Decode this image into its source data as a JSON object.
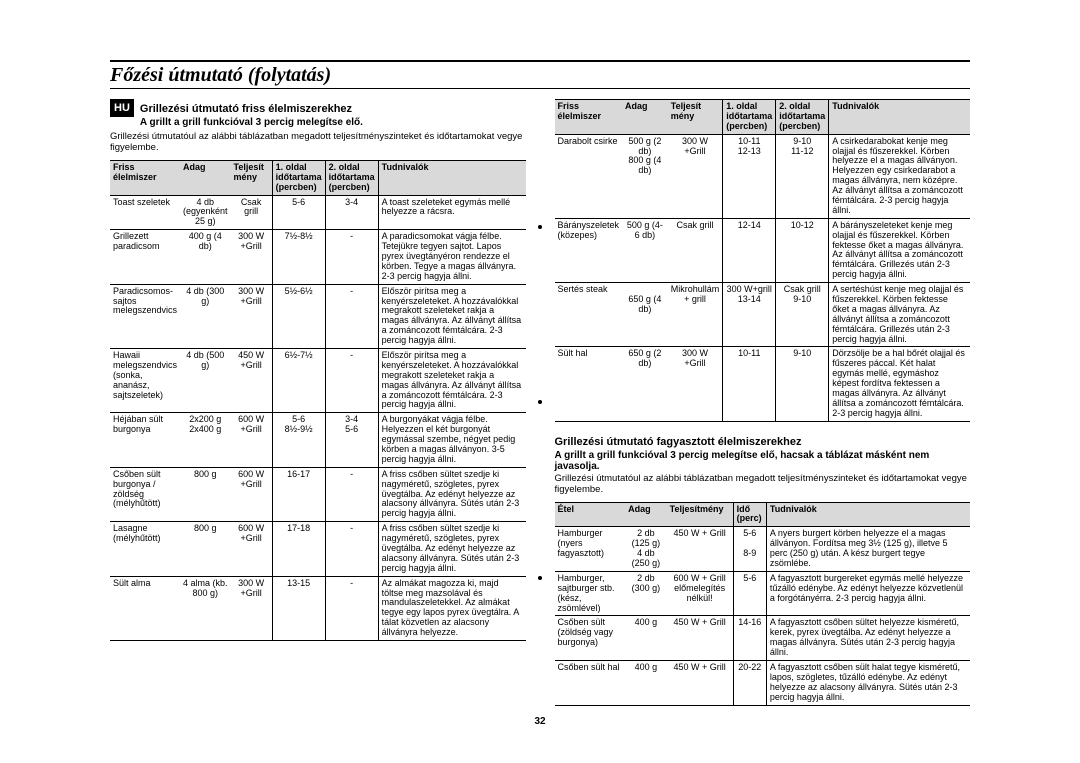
{
  "page": {
    "title": "Főzési útmutató (folytatás)",
    "number": "32",
    "lang_badge": "HU"
  },
  "colors": {
    "header_bg": "#d9d9d9",
    "border": "#000000",
    "bg": "#ffffff"
  },
  "sectionA": {
    "heading": "Grillezési útmutató friss élelmiszerekhez",
    "sub": "A grillt a grill funkcióval 3 percig melegítse elő.",
    "intro": "Grillezési útmutatóul az alábbi táblázatban megadott teljesítményszinteket és időtartamokat vegye figyelembe.",
    "headers": {
      "c1": "Friss élelmiszer",
      "c2": "Adag",
      "c3": "Teljesít\nmény",
      "c4": "1. oldal\nidőtartama\n(percben)",
      "c5": "2. oldal\nidőtartama\n(percben)",
      "c6": "Tudnivalók"
    },
    "rows": [
      {
        "c1": "Toast szeletek",
        "c2": "4 db (egyenként 25 g)",
        "c3": "Csak grill",
        "c4": "5-6",
        "c5": "3-4",
        "c6": "A toast szeleteket egymás mellé helyezze a rácsra."
      },
      {
        "c1": "Grillezett paradicsom",
        "c2": "400 g (4 db)",
        "c3": "300 W +Grill",
        "c4": "7½-8½",
        "c5": "-",
        "c6": "A paradicsomokat vágja félbe. Tetejükre tegyen sajtot. Lapos pyrex üvegtányéron rendezze el körben. Tegye a magas állványra. 2-3 percig hagyja állni."
      },
      {
        "c1": "Paradicsomos-sajtos melegszendvics",
        "c2": "4 db (300 g)",
        "c3": "300 W +Grill",
        "c4": "5½-6½",
        "c5": "-",
        "c6": "Először pirítsa meg a kenyérszeleteket. A hozzávalókkal megrakott szeleteket rakja a magas állványra. Az állványt állítsa a zománcozott fémtálcára. 2-3 percig hagyja állni."
      },
      {
        "c1": "Hawaii melegszendvics (sonka, ananász, sajtszeletek)",
        "c2": "4 db (500 g)",
        "c3": "450 W +Grill",
        "c4": "6½-7½",
        "c5": "-",
        "c6": "Először pirítsa meg a kenyérszeleteket. A hozzávalókkal megrakott szeleteket rakja a magas állványra. Az állványt állítsa a zománcozott fémtálcára. 2-3 percig hagyja állni."
      },
      {
        "c1": "Héjában sült burgonya",
        "c2": "2x200 g\n2x400 g",
        "c3": "600 W +Grill",
        "c4": "5-6\n8½-9½",
        "c5": "3-4\n5-6",
        "c6": "A burgonyákat vágja félbe. Helyezzen el két burgonyát egymással szembe, négyet pedig körben a magas állványon. 3-5 percig hagyja állni."
      },
      {
        "c1": "Csőben sült burgonya / zöldség (mélyhűtött)",
        "c2": "800 g",
        "c3": "600 W +Grill",
        "c4": "16-17",
        "c5": "-",
        "c6": "A friss csőben sültet szedje ki nagyméretű, szögletes, pyrex üvegtálba. Az edényt helyezze az alacsony állványra. Sütés után 2-3 percig hagyja állni."
      },
      {
        "c1": "Lasagne (mélyhűtött)",
        "c2": "800 g",
        "c3": "600 W +Grill",
        "c4": "17-18",
        "c5": "-",
        "c6": "A friss csőben sültet szedje ki nagyméretű, szögletes, pyrex üvegtálba. Az edényt helyezze az alacsony állványra. Sütés után 2-3 percig hagyja állni."
      },
      {
        "c1": "Sült alma",
        "c2": "4 alma (kb. 800 g)",
        "c3": "300 W +Grill",
        "c4": "13-15",
        "c5": "-",
        "c6": "Az almákat magozza ki, majd töltse meg mazsolával és mandulaszeletekkel. Az almákat tegye egy lapos pyrex üvegtálra. A tálat közvetlen az alacsony állványra helyezze."
      }
    ]
  },
  "sectionB": {
    "headers": {
      "c1": "Friss élelmiszer",
      "c2": "Adag",
      "c3": "Teljesít\nmény",
      "c4": "1. oldal\nidőtartama\n(percben)",
      "c5": "2. oldal\nidőtartama\n(percben)",
      "c6": "Tudnivalók"
    },
    "rows": [
      {
        "c1": "Darabolt csirke",
        "c2": "500 g (2 db)\n800 g (4 db)",
        "c3": "300 W +Grill",
        "c4": "10-11\n12-13",
        "c5": "9-10\n11-12",
        "c6": "A csirkedarabokat kenje meg olajjal és fűszerekkel. Körben helyezze el a magas állványon. Helyezzen egy csirkedarabot a magas állványra, nem középre. Az állványt állítsa a zománcozott fémtálcára. 2-3 percig hagyja állni."
      },
      {
        "c1": "Bárányszeletek (közepes)",
        "c2": "500 g (4-6 db)",
        "c3": "Csak grill",
        "c4": "12-14",
        "c5": "10-12",
        "c6": "A bárányszeleteket kenje meg olajjal és fűszerekkel. Körben fektesse őket a magas állványra. Az állványt állítsa a zománcozott fémtálcára. Grillezés után 2-3 percig hagyja állni."
      },
      {
        "c1": "Sertés steak",
        "c2": "\n650 g (4 db)",
        "c3": "Mikrohullám + grill",
        "c4": "300 W+grill 13-14",
        "c5": "Csak grill 9-10",
        "c6": "A sertéshúst kenje meg olajjal és fűszerekkel. Körben fektesse őket a magas állványra. Az állványt állítsa a zománcozott fémtálcára. Grillezés után 2-3 percig hagyja állni."
      },
      {
        "c1": "Sült hal",
        "c2": "650 g (2 db)",
        "c3": "300 W +Grill",
        "c4": "10-11",
        "c5": "9-10",
        "c6": "Dörzsölje be a hal bőrét olajjal és fűszeres páccal. Két halat egymás mellé, egymáshoz képest fordítva fektessen a magas állványra. Az állványt állítsa a zománcozott fémtálcára. 2-3 percig hagyja állni."
      }
    ]
  },
  "sectionC": {
    "heading": "Grillezési útmutató fagyasztott élelmiszerekhez",
    "sub": "A grillt a grill funkcióval 3 percig melegítse elő, hacsak a táblázat másként nem javasolja.",
    "intro": "Grillezési útmutatóul az alábbi táblázatban megadott teljesítményszinteket és időtartamokat vegye figyelembe.",
    "headers": {
      "c1": "Étel",
      "c2": "Adag",
      "c3": "Teljesítmény",
      "c4": "Idő (perc)",
      "c5": "Tudnivalók"
    },
    "rows": [
      {
        "c1": "Hamburger (nyers fagyasztott)",
        "c2": "2 db (125 g)\n4 db (250 g)",
        "c3": "450 W + Grill",
        "c4": "5-6\n\n8-9",
        "c5": "A nyers burgert körben helyezze el a magas állványon. Fordítsa meg 3½ (125 g), illetve 5 perc (250 g) után. A kész burgert tegye zsömlébe."
      },
      {
        "c1": "Hamburger, sajtburger stb.(kész, zsömlével)",
        "c2": "2 db (300 g)",
        "c3": "600 W + Grill előmelegítés nélkül!",
        "c4": "5-6",
        "c5": "A fagyasztott burgereket egymás mellé helyezze tűzálló edénybe. Az edényt helyezze közvetlenül a forgótányérra. 2-3 percig hagyja állni."
      },
      {
        "c1": "Csőben sült (zöldség vagy burgonya)",
        "c2": "400 g",
        "c3": "450 W + Grill",
        "c4": "14-16",
        "c5": "A fagyasztott csőben sültet helyezze kisméretű, kerek, pyrex üvegtálba. Az edényt helyezze a magas állványra. Sütés után 2-3 percig hagyja állni."
      },
      {
        "c1": "Csőben sült hal",
        "c2": "400 g",
        "c3": "450 W + Grill",
        "c4": "20-22",
        "c5": "A fagyasztott csőben sült halat tegye kisméretű, lapos, szögletes, tűzálló edénybe. Az edényt helyezze az alacsony állványra. Sütés után 2-3 percig hagyja állni."
      }
    ]
  }
}
